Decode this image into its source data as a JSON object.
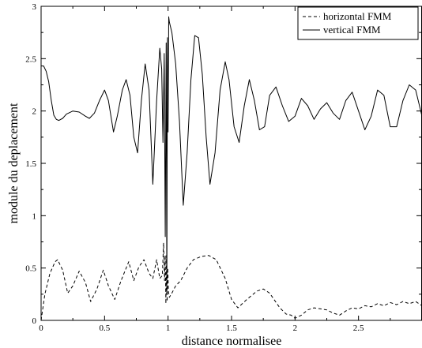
{
  "chart_data": {
    "type": "line",
    "title": "",
    "xlabel": "distance normalisee",
    "ylabel": "module du deplacement",
    "xlim": [
      0,
      3
    ],
    "ylim": [
      0,
      3
    ],
    "xticks": [
      0,
      0.5,
      1,
      1.5,
      2,
      2.5
    ],
    "xtick_labels": [
      "0",
      "0.5",
      "1",
      "1.5",
      "2",
      "2.5"
    ],
    "yticks": [
      0,
      0.5,
      1,
      1.5,
      2,
      2.5,
      3
    ],
    "ytick_labels": [
      "0",
      "0.5",
      "1",
      "1.5",
      "2",
      "2.5",
      "3"
    ],
    "grid": false,
    "legend_position": "top-right",
    "series": [
      {
        "name": "horizontal FMM",
        "style": "dashed",
        "color": "#000000",
        "x": [
          0.0,
          0.03,
          0.07,
          0.11,
          0.13,
          0.17,
          0.21,
          0.25,
          0.3,
          0.35,
          0.39,
          0.44,
          0.49,
          0.53,
          0.58,
          0.63,
          0.69,
          0.73,
          0.77,
          0.81,
          0.85,
          0.88,
          0.91,
          0.935,
          0.955,
          0.965,
          0.972,
          0.978,
          0.983,
          0.988,
          0.993,
          0.998,
          1.003,
          1.01,
          1.03,
          1.06,
          1.1,
          1.15,
          1.2,
          1.26,
          1.32,
          1.38,
          1.45,
          1.5,
          1.55,
          1.62,
          1.7,
          1.75,
          1.8,
          1.88,
          1.93,
          1.97,
          2.0,
          2.05,
          2.1,
          2.15,
          2.2,
          2.25,
          2.3,
          2.35,
          2.4,
          2.45,
          2.5,
          2.55,
          2.6,
          2.65,
          2.7,
          2.75,
          2.8,
          2.85,
          2.9,
          2.95,
          3.0
        ],
        "values": [
          0.0,
          0.25,
          0.45,
          0.56,
          0.58,
          0.48,
          0.26,
          0.33,
          0.47,
          0.36,
          0.18,
          0.3,
          0.48,
          0.33,
          0.2,
          0.38,
          0.56,
          0.38,
          0.51,
          0.58,
          0.45,
          0.4,
          0.58,
          0.4,
          0.43,
          0.74,
          0.38,
          0.62,
          0.16,
          0.62,
          0.18,
          0.5,
          0.28,
          0.22,
          0.26,
          0.33,
          0.38,
          0.5,
          0.58,
          0.61,
          0.62,
          0.58,
          0.4,
          0.2,
          0.12,
          0.2,
          0.28,
          0.3,
          0.26,
          0.12,
          0.06,
          0.05,
          0.02,
          0.05,
          0.1,
          0.12,
          0.11,
          0.1,
          0.07,
          0.05,
          0.09,
          0.12,
          0.11,
          0.14,
          0.13,
          0.16,
          0.14,
          0.17,
          0.15,
          0.18,
          0.16,
          0.18,
          0.14
        ]
      },
      {
        "name": "vertical FMM",
        "style": "solid",
        "color": "#000000",
        "x": [
          0.0,
          0.02,
          0.04,
          0.06,
          0.08,
          0.1,
          0.12,
          0.14,
          0.17,
          0.2,
          0.25,
          0.3,
          0.35,
          0.38,
          0.42,
          0.46,
          0.5,
          0.53,
          0.57,
          0.6,
          0.64,
          0.67,
          0.7,
          0.73,
          0.76,
          0.79,
          0.82,
          0.85,
          0.88,
          0.91,
          0.935,
          0.95,
          0.96,
          0.97,
          0.978,
          0.985,
          0.99,
          0.995,
          1.0,
          1.005,
          1.01,
          1.03,
          1.06,
          1.09,
          1.12,
          1.15,
          1.18,
          1.21,
          1.24,
          1.27,
          1.3,
          1.33,
          1.37,
          1.41,
          1.45,
          1.48,
          1.52,
          1.56,
          1.6,
          1.64,
          1.68,
          1.72,
          1.76,
          1.8,
          1.85,
          1.9,
          1.95,
          2.0,
          2.05,
          2.1,
          2.15,
          2.2,
          2.25,
          2.3,
          2.35,
          2.4,
          2.45,
          2.5,
          2.55,
          2.6,
          2.65,
          2.7,
          2.75,
          2.8,
          2.85,
          2.9,
          2.95,
          3.0
        ],
        "values": [
          2.43,
          2.43,
          2.38,
          2.28,
          2.1,
          1.96,
          1.92,
          1.91,
          1.93,
          1.97,
          2.0,
          1.99,
          1.95,
          1.93,
          1.98,
          2.1,
          2.2,
          2.1,
          1.8,
          1.95,
          2.2,
          2.3,
          2.15,
          1.75,
          1.6,
          2.1,
          2.45,
          2.2,
          1.3,
          2.1,
          2.6,
          2.4,
          1.7,
          2.55,
          0.8,
          2.65,
          0.25,
          2.7,
          1.8,
          2.9,
          2.85,
          2.75,
          2.45,
          1.9,
          1.1,
          1.6,
          2.3,
          2.72,
          2.7,
          2.35,
          1.75,
          1.3,
          1.6,
          2.2,
          2.47,
          2.3,
          1.85,
          1.7,
          2.05,
          2.3,
          2.1,
          1.82,
          1.85,
          2.15,
          2.23,
          2.05,
          1.9,
          1.95,
          2.12,
          2.05,
          1.92,
          2.02,
          2.08,
          1.98,
          1.92,
          2.1,
          2.18,
          2.0,
          1.82,
          1.95,
          2.2,
          2.15,
          1.85,
          1.85,
          2.1,
          2.25,
          2.2,
          1.95
        ]
      }
    ]
  }
}
